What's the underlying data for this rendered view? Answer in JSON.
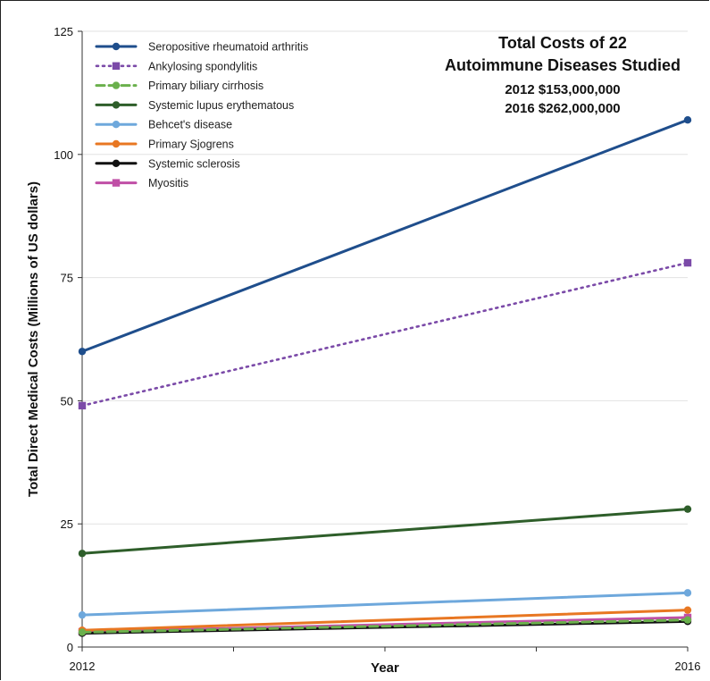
{
  "chart_data": {
    "type": "line",
    "x": [
      2012,
      2016
    ],
    "xlabel": "Year",
    "ylabel": "Total Direct Medical Costs (Millions of US dollars)",
    "ylim": [
      0,
      125
    ],
    "yticks": [
      0,
      25,
      50,
      75,
      100,
      125
    ],
    "xticks": [
      "2012",
      "2016"
    ],
    "grid": "horizontal",
    "legend_position": "top-left",
    "annotation": {
      "title_lines": [
        "Total Costs of 22",
        "Autoimmune Diseases Studied"
      ],
      "lines": [
        "2012  $153,000,000",
        "2016  $262,000,000"
      ]
    },
    "series": [
      {
        "name": "Seropositive rheumatoid arthritis",
        "values": [
          60,
          107
        ],
        "color": "#1f4e8c",
        "dash": "solid",
        "marker": "circle"
      },
      {
        "name": "Ankylosing spondylitis",
        "values": [
          49,
          78
        ],
        "color": "#7b4aa8",
        "dash": "dotted",
        "marker": "square"
      },
      {
        "name": "Primary biliary cirrhosis",
        "values": [
          3,
          5.5
        ],
        "color": "#6ab04c",
        "dash": "dashed",
        "marker": "circle"
      },
      {
        "name": "Systemic lupus erythematous",
        "values": [
          19,
          28
        ],
        "color": "#2e5e2a",
        "dash": "solid",
        "marker": "circle"
      },
      {
        "name": "Behcet's disease",
        "values": [
          6.5,
          11
        ],
        "color": "#6ea8dc",
        "dash": "solid",
        "marker": "circle"
      },
      {
        "name": "Primary Sjogrens",
        "values": [
          3.4,
          7.5
        ],
        "color": "#e87722",
        "dash": "solid",
        "marker": "circle"
      },
      {
        "name": "Systemic sclerosis",
        "values": [
          2.8,
          5.2
        ],
        "color": "#111111",
        "dash": "solid",
        "marker": "circle"
      },
      {
        "name": "Myositis",
        "values": [
          3.1,
          6
        ],
        "color": "#c04fa6",
        "dash": "solid",
        "marker": "square"
      }
    ]
  }
}
